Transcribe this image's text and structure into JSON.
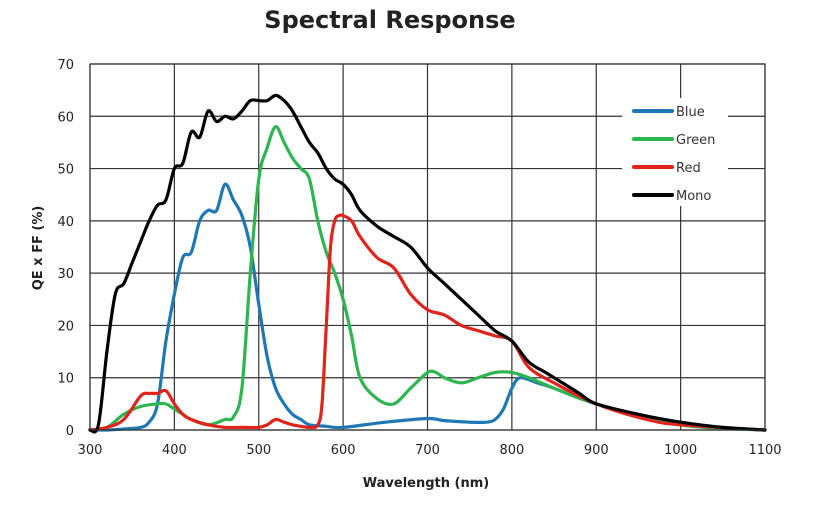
{
  "chart_data": {
    "type": "line",
    "title": "Spectral Response",
    "xlabel": "Wavelength (nm)",
    "ylabel": "QE x FF (%)",
    "xlim": [
      300,
      1100
    ],
    "ylim": [
      0,
      70
    ],
    "xticks": [
      300,
      400,
      500,
      600,
      700,
      800,
      900,
      1000,
      1100
    ],
    "yticks": [
      0,
      10,
      20,
      30,
      40,
      50,
      60,
      70
    ],
    "grid": true,
    "legend": "top-right",
    "series": [
      {
        "name": "Blue",
        "color": "#1f77b4",
        "x": [
          300,
          320,
          340,
          360,
          370,
          380,
          390,
          400,
          410,
          420,
          430,
          440,
          450,
          460,
          470,
          480,
          490,
          500,
          510,
          520,
          530,
          540,
          550,
          560,
          580,
          600,
          650,
          700,
          720,
          750,
          770,
          780,
          790,
          800,
          810,
          830,
          850,
          900,
          1000,
          1100
        ],
        "y": [
          0,
          0,
          0.2,
          0.5,
          1.5,
          5,
          17,
          26,
          33,
          34,
          40,
          42,
          42,
          47,
          44,
          41,
          35,
          24,
          14,
          8,
          5,
          3,
          2,
          1,
          0.7,
          0.5,
          1.5,
          2.2,
          1.8,
          1.5,
          1.5,
          2,
          4,
          8,
          10,
          9,
          8,
          5,
          1,
          0
        ]
      },
      {
        "name": "Green",
        "color": "#2db550",
        "x": [
          300,
          320,
          340,
          360,
          380,
          390,
          400,
          410,
          420,
          440,
          460,
          470,
          480,
          490,
          500,
          510,
          520,
          530,
          540,
          550,
          560,
          570,
          580,
          590,
          600,
          610,
          620,
          640,
          660,
          680,
          700,
          710,
          720,
          740,
          760,
          780,
          800,
          820,
          850,
          900,
          1000,
          1100
        ],
        "y": [
          0,
          0.5,
          3,
          4.5,
          5,
          5,
          4,
          3,
          2,
          1,
          2,
          2.5,
          8,
          30,
          48,
          54,
          58,
          55,
          52,
          50,
          48,
          40,
          34,
          30,
          25,
          18,
          10,
          6,
          5,
          8,
          11,
          11,
          10,
          9,
          10,
          11,
          11,
          10,
          8,
          5,
          1,
          0
        ]
      },
      {
        "name": "Red",
        "color": "#e0241b",
        "x": [
          300,
          320,
          340,
          360,
          370,
          380,
          390,
          400,
          410,
          420,
          440,
          460,
          480,
          500,
          510,
          520,
          530,
          540,
          560,
          570,
          575,
          580,
          585,
          590,
          595,
          600,
          610,
          620,
          640,
          660,
          680,
          700,
          720,
          740,
          760,
          780,
          800,
          820,
          850,
          900,
          960,
          1000,
          1100
        ],
        "y": [
          0,
          0.5,
          2,
          6.5,
          7,
          7,
          7.5,
          5,
          3,
          2,
          1,
          0.5,
          0.5,
          0.5,
          1,
          2,
          1.5,
          1,
          0.5,
          1,
          5,
          20,
          35,
          40,
          41,
          41,
          40,
          37,
          33,
          31,
          26,
          23,
          22,
          20,
          19,
          18,
          17,
          12,
          9,
          5,
          2,
          1,
          0
        ]
      },
      {
        "name": "Mono",
        "color": "#000000",
        "x": [
          300,
          310,
          320,
          330,
          340,
          350,
          360,
          370,
          380,
          390,
          400,
          410,
          420,
          430,
          440,
          450,
          460,
          470,
          480,
          490,
          500,
          510,
          520,
          530,
          540,
          550,
          560,
          570,
          580,
          590,
          600,
          610,
          620,
          640,
          660,
          680,
          700,
          720,
          740,
          760,
          780,
          800,
          820,
          840,
          860,
          880,
          900,
          950,
          1000,
          1050,
          1100
        ],
        "y": [
          0,
          1,
          15,
          26,
          28,
          32,
          36,
          40,
          43,
          44,
          50,
          51,
          57,
          56,
          61,
          59,
          60,
          59.5,
          61,
          63,
          63,
          63,
          64,
          63,
          61,
          58,
          55,
          53,
          50,
          48,
          47,
          45,
          42,
          39,
          37,
          35,
          31,
          28,
          25,
          22,
          19,
          17,
          13,
          11,
          9,
          7,
          5,
          3,
          1.5,
          0.5,
          0
        ]
      }
    ]
  }
}
